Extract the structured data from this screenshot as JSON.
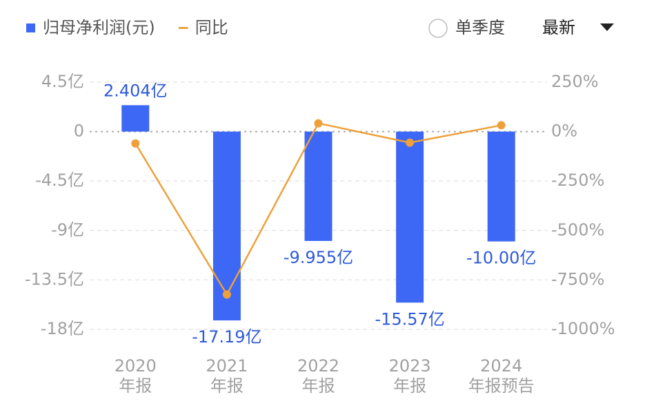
{
  "chart_data": {
    "type": "combo",
    "categories": [
      [
        "2020",
        "年报"
      ],
      [
        "2021",
        "年报"
      ],
      [
        "2022",
        "年报"
      ],
      [
        "2023",
        "年报"
      ],
      [
        "2024",
        "年报预告"
      ]
    ],
    "series": [
      {
        "name": "归母净利润(元)",
        "type": "bar",
        "color": "#3d68f5",
        "values": [
          2.404,
          -17.19,
          -9.955,
          -15.57,
          -10.0
        ],
        "value_labels": [
          "2.404亿",
          "-17.19亿",
          "-9.955亿",
          "-15.57亿",
          "-10.00亿"
        ]
      },
      {
        "name": "同比",
        "type": "line",
        "axis": "y2",
        "color": "#eea03a",
        "values": [
          -60,
          -824,
          42,
          -56,
          32
        ]
      }
    ],
    "ylim": [
      -18,
      4.5
    ],
    "yticks": [
      {
        "value": 4.5,
        "label": "4.5亿"
      },
      0,
      {
        "value": -4.5,
        "label": "-4.5亿"
      },
      {
        "value": -9,
        "label": "-9亿"
      },
      {
        "value": -13.5,
        "label": "-13.5亿"
      },
      {
        "value": -18,
        "label": "-18亿"
      }
    ],
    "y2lim": [
      -1000,
      250
    ],
    "y2ticks": [
      {
        "value": 250,
        "label": "250%"
      },
      {
        "value": 0,
        "label": "0%"
      },
      {
        "value": -250,
        "label": "-250%"
      },
      {
        "value": -500,
        "label": "-500%"
      },
      {
        "value": -750,
        "label": "-750%"
      },
      {
        "value": -1000,
        "label": "-1000%"
      }
    ],
    "grid": true,
    "controls": {
      "toggle": "单季度",
      "dropdown": "最新"
    }
  }
}
